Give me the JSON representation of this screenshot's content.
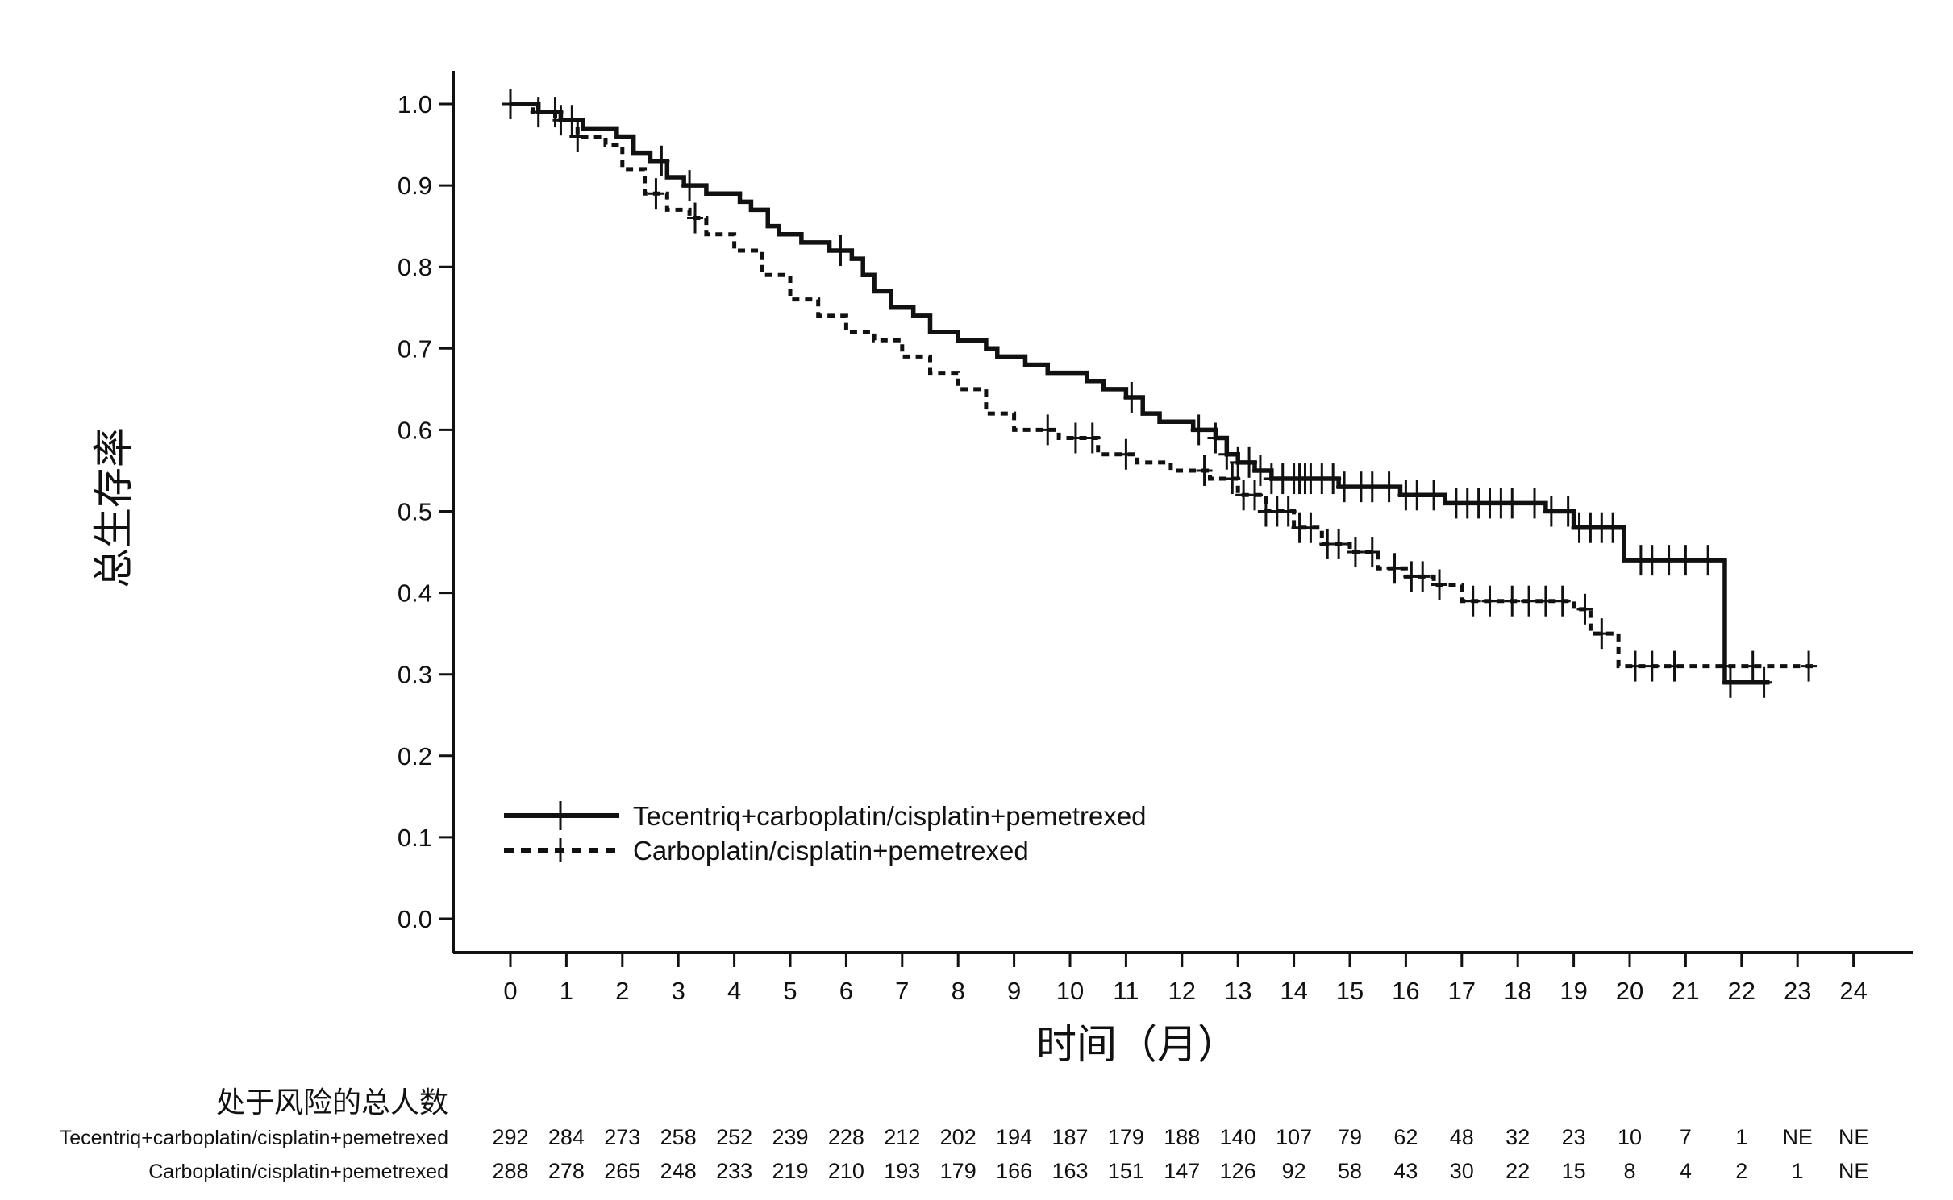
{
  "chart_data": {
    "type": "line",
    "title": "",
    "xlabel": "时间（月）",
    "ylabel": "总生存率",
    "xlim": [
      0,
      24
    ],
    "ylim": [
      0.0,
      1.0
    ],
    "x_ticks": [
      0,
      1,
      2,
      3,
      4,
      5,
      6,
      7,
      8,
      9,
      10,
      11,
      12,
      13,
      14,
      15,
      16,
      17,
      18,
      19,
      20,
      21,
      22,
      23,
      24
    ],
    "x_tick_labels": [
      "0",
      "1",
      "2",
      "3",
      "4",
      "5",
      "6",
      "7",
      "8",
      "9",
      "10",
      "11",
      "12",
      "13",
      "14",
      "15",
      "16",
      "17",
      "18",
      "19",
      "20",
      "21",
      "22",
      "23",
      "24"
    ],
    "y_ticks": [
      0.0,
      0.1,
      0.2,
      0.3,
      0.4,
      0.5,
      0.6,
      0.7,
      0.8,
      0.9,
      1.0
    ],
    "y_tick_labels": [
      "0.0",
      "0.1",
      "0.2",
      "0.3",
      "0.4",
      "0.5",
      "0.6",
      "0.7",
      "0.8",
      "0.9",
      "1.0"
    ],
    "grid": false,
    "legend_position": "bottom-left",
    "series": [
      {
        "name": "Tecentriq+carboplatin/cisplatin+pemetrexed",
        "color": "#111111",
        "line_style": "solid",
        "steps": [
          [
            0,
            1.0
          ],
          [
            0.5,
            0.99
          ],
          [
            0.9,
            0.98
          ],
          [
            1.3,
            0.97
          ],
          [
            1.9,
            0.96
          ],
          [
            2.2,
            0.94
          ],
          [
            2.5,
            0.93
          ],
          [
            2.8,
            0.91
          ],
          [
            3.1,
            0.9
          ],
          [
            3.5,
            0.89
          ],
          [
            4.1,
            0.88
          ],
          [
            4.3,
            0.87
          ],
          [
            4.6,
            0.85
          ],
          [
            4.8,
            0.84
          ],
          [
            5.2,
            0.83
          ],
          [
            5.7,
            0.82
          ],
          [
            6.1,
            0.81
          ],
          [
            6.3,
            0.79
          ],
          [
            6.5,
            0.77
          ],
          [
            6.8,
            0.75
          ],
          [
            7.2,
            0.74
          ],
          [
            7.5,
            0.72
          ],
          [
            8.0,
            0.71
          ],
          [
            8.5,
            0.7
          ],
          [
            8.7,
            0.69
          ],
          [
            9.2,
            0.68
          ],
          [
            9.6,
            0.67
          ],
          [
            10.3,
            0.66
          ],
          [
            10.6,
            0.65
          ],
          [
            11.0,
            0.64
          ],
          [
            11.3,
            0.62
          ],
          [
            11.6,
            0.61
          ],
          [
            12.2,
            0.6
          ],
          [
            12.6,
            0.59
          ],
          [
            12.8,
            0.57
          ],
          [
            13.0,
            0.56
          ],
          [
            13.3,
            0.55
          ],
          [
            13.6,
            0.54
          ],
          [
            14.8,
            0.53
          ],
          [
            15.9,
            0.52
          ],
          [
            16.7,
            0.51
          ],
          [
            18.5,
            0.5
          ],
          [
            19.0,
            0.48
          ],
          [
            19.9,
            0.44
          ],
          [
            21.7,
            0.29
          ],
          [
            22.5,
            0.29
          ]
        ],
        "censor_x": [
          0,
          0.8,
          1.1,
          2.7,
          3.2,
          5.9,
          11.1,
          12.3,
          12.6,
          12.8,
          13.0,
          13.2,
          13.4,
          13.6,
          13.8,
          14.0,
          14.1,
          14.2,
          14.3,
          14.5,
          14.7,
          14.9,
          15.2,
          15.4,
          15.7,
          16.0,
          16.2,
          16.5,
          16.9,
          17.1,
          17.3,
          17.5,
          17.7,
          17.9,
          18.3,
          18.6,
          18.9,
          19.1,
          19.3,
          19.5,
          19.7,
          20.2,
          20.4,
          20.7,
          21.0,
          21.4,
          21.8,
          22.4
        ]
      },
      {
        "name": "Carboplatin/cisplatin+pemetrexed",
        "color": "#111111",
        "line_style": "dashed",
        "steps": [
          [
            0,
            1.0
          ],
          [
            0.4,
            0.99
          ],
          [
            0.8,
            0.98
          ],
          [
            1.2,
            0.96
          ],
          [
            1.7,
            0.95
          ],
          [
            2.0,
            0.92
          ],
          [
            2.4,
            0.89
          ],
          [
            2.8,
            0.87
          ],
          [
            3.2,
            0.86
          ],
          [
            3.5,
            0.84
          ],
          [
            4.0,
            0.82
          ],
          [
            4.5,
            0.79
          ],
          [
            5.0,
            0.76
          ],
          [
            5.5,
            0.74
          ],
          [
            6.0,
            0.72
          ],
          [
            6.5,
            0.71
          ],
          [
            7.0,
            0.69
          ],
          [
            7.5,
            0.67
          ],
          [
            8.0,
            0.65
          ],
          [
            8.5,
            0.62
          ],
          [
            9.0,
            0.6
          ],
          [
            9.8,
            0.59
          ],
          [
            10.5,
            0.57
          ],
          [
            11.2,
            0.56
          ],
          [
            11.8,
            0.55
          ],
          [
            12.5,
            0.54
          ],
          [
            13.0,
            0.52
          ],
          [
            13.5,
            0.5
          ],
          [
            14.0,
            0.48
          ],
          [
            14.5,
            0.46
          ],
          [
            15.0,
            0.45
          ],
          [
            15.5,
            0.43
          ],
          [
            16.0,
            0.42
          ],
          [
            16.5,
            0.41
          ],
          [
            17.0,
            0.39
          ],
          [
            18.0,
            0.39
          ],
          [
            19.0,
            0.38
          ],
          [
            19.3,
            0.35
          ],
          [
            19.8,
            0.31
          ],
          [
            23.3,
            0.31
          ]
        ],
        "censor_x": [
          0,
          0.5,
          0.9,
          1.2,
          2.6,
          3.3,
          9.6,
          10.1,
          10.4,
          11.0,
          12.4,
          12.9,
          13.1,
          13.3,
          13.5,
          13.7,
          13.9,
          14.1,
          14.3,
          14.6,
          14.8,
          15.1,
          15.4,
          15.8,
          16.1,
          16.3,
          16.6,
          17.2,
          17.5,
          17.9,
          18.2,
          18.5,
          18.8,
          19.2,
          19.5,
          20.1,
          20.4,
          20.8,
          21.7,
          22.2,
          23.2
        ]
      }
    ],
    "risk_table": {
      "title": "处于风险的总人数",
      "rows": [
        {
          "label": "Tecentriq+carboplatin/cisplatin+pemetrexed",
          "values": [
            "292",
            "284",
            "273",
            "258",
            "252",
            "239",
            "228",
            "212",
            "202",
            "194",
            "187",
            "179",
            "188",
            "140",
            "107",
            "79",
            "62",
            "48",
            "32",
            "23",
            "10",
            "7",
            "1",
            "NE",
            "NE"
          ]
        },
        {
          "label": "Carboplatin/cisplatin+pemetrexed",
          "values": [
            "288",
            "278",
            "265",
            "248",
            "233",
            "219",
            "210",
            "193",
            "179",
            "166",
            "163",
            "151",
            "147",
            "126",
            "92",
            "58",
            "43",
            "30",
            "22",
            "15",
            "8",
            "4",
            "2",
            "1",
            "NE"
          ]
        }
      ]
    }
  }
}
